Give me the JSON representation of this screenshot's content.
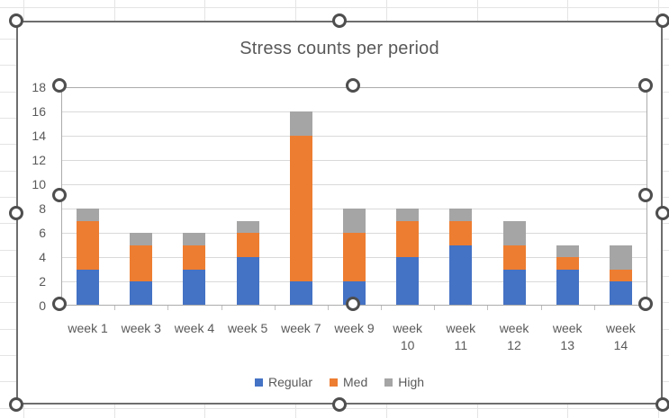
{
  "chart_data": {
    "type": "bar",
    "stacked": true,
    "title": "Stress counts per period",
    "categories": [
      "week 1",
      "week 3",
      "week 4",
      "week 5",
      "week 7",
      "week 9",
      "week 10",
      "week 11",
      "week 12",
      "week 13",
      "week 14"
    ],
    "label_lines": [
      [
        "week 1"
      ],
      [
        "week 3"
      ],
      [
        "week 4"
      ],
      [
        "week 5"
      ],
      [
        "week 7"
      ],
      [
        "week 9"
      ],
      [
        "week",
        "10"
      ],
      [
        "week",
        "11"
      ],
      [
        "week",
        "12"
      ],
      [
        "week",
        "13"
      ],
      [
        "week",
        "14"
      ]
    ],
    "series": [
      {
        "name": "Regular",
        "color": "#4472C4",
        "values": [
          3,
          2,
          3,
          4,
          2,
          2,
          4,
          5,
          3,
          3,
          2
        ]
      },
      {
        "name": "Med",
        "color": "#ED7D31",
        "values": [
          4,
          3,
          2,
          2,
          12,
          4,
          3,
          2,
          2,
          1,
          1
        ]
      },
      {
        "name": "High",
        "color": "#A5A5A5",
        "values": [
          1,
          1,
          1,
          1,
          2,
          2,
          1,
          1,
          2,
          1,
          2
        ]
      }
    ],
    "totals": [
      8,
      6,
      6,
      7,
      16,
      8,
      8,
      8,
      7,
      5,
      5
    ],
    "xlabel": "",
    "ylabel": "",
    "ylim": [
      0,
      18
    ],
    "ytick_step": 2,
    "grid": true,
    "legend_position": "bottom"
  },
  "colors": {
    "text": "#595959",
    "gridline": "#d9d9d9",
    "axis_line": "#b3b3b3",
    "plot_selection_border": "#ababab",
    "chart_border": "#6e6e6e",
    "handle_stroke": "#4e4e4e",
    "sheet_gridline": "#e4e4e4"
  }
}
